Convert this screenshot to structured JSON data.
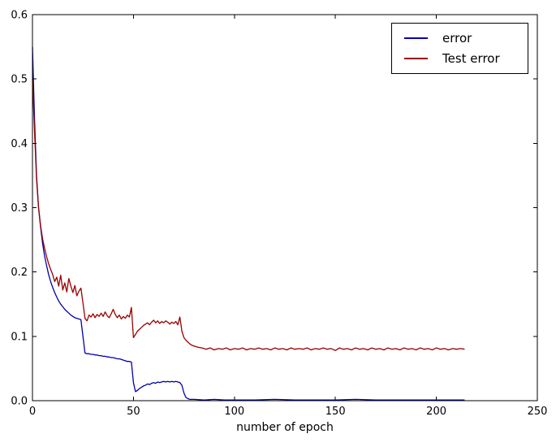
{
  "chart_data": {
    "type": "line",
    "title": "",
    "xlabel": "number of epoch",
    "ylabel": "",
    "xlim": [
      0,
      250
    ],
    "ylim": [
      0.0,
      0.6
    ],
    "xticks": [
      "0",
      "50",
      "100",
      "150",
      "200",
      "250"
    ],
    "yticks": [
      "0.0",
      "0.1",
      "0.2",
      "0.3",
      "0.4",
      "0.5",
      "0.6"
    ],
    "grid": false,
    "frame_color": "#000000",
    "background_color": "#ffffff",
    "legend": {
      "position": "upper right",
      "border": true
    },
    "series": [
      {
        "name": "error",
        "color": "#0000AA",
        "points": [
          [
            0,
            0.55
          ],
          [
            1,
            0.44
          ],
          [
            2,
            0.35
          ],
          [
            3,
            0.3
          ],
          [
            4,
            0.27
          ],
          [
            5,
            0.245
          ],
          [
            6,
            0.225
          ],
          [
            7,
            0.21
          ],
          [
            8,
            0.196
          ],
          [
            9,
            0.185
          ],
          [
            10,
            0.176
          ],
          [
            11,
            0.168
          ],
          [
            12,
            0.161
          ],
          [
            13,
            0.155
          ],
          [
            14,
            0.15
          ],
          [
            15,
            0.146
          ],
          [
            16,
            0.142
          ],
          [
            17,
            0.139
          ],
          [
            18,
            0.136
          ],
          [
            19,
            0.133
          ],
          [
            20,
            0.131
          ],
          [
            21,
            0.129
          ],
          [
            22,
            0.128
          ],
          [
            23,
            0.127
          ],
          [
            24,
            0.126
          ],
          [
            25,
            0.1
          ],
          [
            26,
            0.074
          ],
          [
            27,
            0.073
          ],
          [
            28,
            0.073
          ],
          [
            29,
            0.072
          ],
          [
            30,
            0.072
          ],
          [
            31,
            0.071
          ],
          [
            32,
            0.071
          ],
          [
            33,
            0.07
          ],
          [
            34,
            0.07
          ],
          [
            35,
            0.069
          ],
          [
            36,
            0.069
          ],
          [
            37,
            0.068
          ],
          [
            38,
            0.068
          ],
          [
            39,
            0.067
          ],
          [
            40,
            0.067
          ],
          [
            41,
            0.066
          ],
          [
            42,
            0.065
          ],
          [
            43,
            0.065
          ],
          [
            44,
            0.064
          ],
          [
            45,
            0.063
          ],
          [
            46,
            0.062
          ],
          [
            47,
            0.061
          ],
          [
            48,
            0.061
          ],
          [
            49,
            0.06
          ],
          [
            50,
            0.028
          ],
          [
            51,
            0.014
          ],
          [
            52,
            0.016
          ],
          [
            53,
            0.019
          ],
          [
            54,
            0.021
          ],
          [
            55,
            0.023
          ],
          [
            56,
            0.024
          ],
          [
            57,
            0.026
          ],
          [
            58,
            0.025
          ],
          [
            59,
            0.027
          ],
          [
            60,
            0.028
          ],
          [
            61,
            0.027
          ],
          [
            62,
            0.029
          ],
          [
            63,
            0.028
          ],
          [
            64,
            0.029
          ],
          [
            65,
            0.03
          ],
          [
            66,
            0.029
          ],
          [
            67,
            0.03
          ],
          [
            68,
            0.029
          ],
          [
            69,
            0.03
          ],
          [
            70,
            0.029
          ],
          [
            71,
            0.03
          ],
          [
            72,
            0.029
          ],
          [
            73,
            0.028
          ],
          [
            74,
            0.024
          ],
          [
            75,
            0.012
          ],
          [
            76,
            0.005
          ],
          [
            77,
            0.003
          ],
          [
            78,
            0.002
          ],
          [
            80,
            0.002
          ],
          [
            85,
            0.001
          ],
          [
            90,
            0.002
          ],
          [
            95,
            0.001
          ],
          [
            100,
            0.001
          ],
          [
            110,
            0.001
          ],
          [
            120,
            0.002
          ],
          [
            130,
            0.001
          ],
          [
            140,
            0.001
          ],
          [
            150,
            0.001
          ],
          [
            160,
            0.002
          ],
          [
            170,
            0.001
          ],
          [
            180,
            0.001
          ],
          [
            190,
            0.001
          ],
          [
            200,
            0.001
          ],
          [
            210,
            0.001
          ],
          [
            214,
            0.001
          ]
        ]
      },
      {
        "name": "Test error",
        "color": "#990000",
        "points": [
          [
            0,
            0.5
          ],
          [
            1,
            0.42
          ],
          [
            2,
            0.345
          ],
          [
            3,
            0.3
          ],
          [
            4,
            0.272
          ],
          [
            5,
            0.252
          ],
          [
            6,
            0.237
          ],
          [
            7,
            0.224
          ],
          [
            8,
            0.213
          ],
          [
            9,
            0.204
          ],
          [
            10,
            0.196
          ],
          [
            11,
            0.185
          ],
          [
            12,
            0.192
          ],
          [
            13,
            0.178
          ],
          [
            14,
            0.195
          ],
          [
            15,
            0.172
          ],
          [
            16,
            0.183
          ],
          [
            17,
            0.169
          ],
          [
            18,
            0.19
          ],
          [
            19,
            0.178
          ],
          [
            20,
            0.168
          ],
          [
            21,
            0.179
          ],
          [
            22,
            0.163
          ],
          [
            23,
            0.17
          ],
          [
            24,
            0.175
          ],
          [
            25,
            0.152
          ],
          [
            26,
            0.128
          ],
          [
            27,
            0.124
          ],
          [
            28,
            0.133
          ],
          [
            29,
            0.13
          ],
          [
            30,
            0.135
          ],
          [
            31,
            0.129
          ],
          [
            32,
            0.134
          ],
          [
            33,
            0.131
          ],
          [
            34,
            0.136
          ],
          [
            35,
            0.131
          ],
          [
            36,
            0.138
          ],
          [
            37,
            0.132
          ],
          [
            38,
            0.129
          ],
          [
            39,
            0.135
          ],
          [
            40,
            0.142
          ],
          [
            41,
            0.134
          ],
          [
            42,
            0.129
          ],
          [
            43,
            0.133
          ],
          [
            44,
            0.127
          ],
          [
            45,
            0.131
          ],
          [
            46,
            0.128
          ],
          [
            47,
            0.133
          ],
          [
            48,
            0.13
          ],
          [
            49,
            0.145
          ],
          [
            50,
            0.098
          ],
          [
            51,
            0.103
          ],
          [
            52,
            0.108
          ],
          [
            53,
            0.111
          ],
          [
            54,
            0.114
          ],
          [
            55,
            0.117
          ],
          [
            56,
            0.119
          ],
          [
            57,
            0.121
          ],
          [
            58,
            0.118
          ],
          [
            59,
            0.122
          ],
          [
            60,
            0.125
          ],
          [
            61,
            0.121
          ],
          [
            62,
            0.124
          ],
          [
            63,
            0.12
          ],
          [
            64,
            0.123
          ],
          [
            65,
            0.121
          ],
          [
            66,
            0.124
          ],
          [
            67,
            0.122
          ],
          [
            68,
            0.119
          ],
          [
            69,
            0.122
          ],
          [
            70,
            0.12
          ],
          [
            71,
            0.123
          ],
          [
            72,
            0.118
          ],
          [
            73,
            0.13
          ],
          [
            74,
            0.108
          ],
          [
            75,
            0.098
          ],
          [
            76,
            0.094
          ],
          [
            77,
            0.091
          ],
          [
            78,
            0.088
          ],
          [
            79,
            0.086
          ],
          [
            80,
            0.085
          ],
          [
            81,
            0.084
          ],
          [
            82,
            0.083
          ],
          [
            84,
            0.082
          ],
          [
            86,
            0.08
          ],
          [
            88,
            0.082
          ],
          [
            90,
            0.079
          ],
          [
            92,
            0.081
          ],
          [
            94,
            0.08
          ],
          [
            96,
            0.082
          ],
          [
            98,
            0.079
          ],
          [
            100,
            0.081
          ],
          [
            102,
            0.08
          ],
          [
            104,
            0.082
          ],
          [
            106,
            0.079
          ],
          [
            108,
            0.081
          ],
          [
            110,
            0.08
          ],
          [
            112,
            0.082
          ],
          [
            114,
            0.08
          ],
          [
            116,
            0.081
          ],
          [
            118,
            0.079
          ],
          [
            120,
            0.082
          ],
          [
            122,
            0.08
          ],
          [
            124,
            0.081
          ],
          [
            126,
            0.079
          ],
          [
            128,
            0.082
          ],
          [
            130,
            0.08
          ],
          [
            132,
            0.081
          ],
          [
            134,
            0.08
          ],
          [
            136,
            0.082
          ],
          [
            138,
            0.079
          ],
          [
            140,
            0.081
          ],
          [
            142,
            0.08
          ],
          [
            144,
            0.082
          ],
          [
            146,
            0.08
          ],
          [
            148,
            0.081
          ],
          [
            150,
            0.078
          ],
          [
            152,
            0.082
          ],
          [
            154,
            0.08
          ],
          [
            156,
            0.081
          ],
          [
            158,
            0.079
          ],
          [
            160,
            0.082
          ],
          [
            162,
            0.08
          ],
          [
            164,
            0.081
          ],
          [
            166,
            0.079
          ],
          [
            168,
            0.082
          ],
          [
            170,
            0.08
          ],
          [
            172,
            0.081
          ],
          [
            174,
            0.079
          ],
          [
            176,
            0.082
          ],
          [
            178,
            0.08
          ],
          [
            180,
            0.081
          ],
          [
            182,
            0.079
          ],
          [
            184,
            0.082
          ],
          [
            186,
            0.08
          ],
          [
            188,
            0.081
          ],
          [
            190,
            0.079
          ],
          [
            192,
            0.082
          ],
          [
            194,
            0.08
          ],
          [
            196,
            0.081
          ],
          [
            198,
            0.079
          ],
          [
            200,
            0.082
          ],
          [
            202,
            0.08
          ],
          [
            204,
            0.081
          ],
          [
            206,
            0.079
          ],
          [
            208,
            0.081
          ],
          [
            210,
            0.08
          ],
          [
            212,
            0.081
          ],
          [
            214,
            0.08
          ]
        ]
      }
    ]
  }
}
